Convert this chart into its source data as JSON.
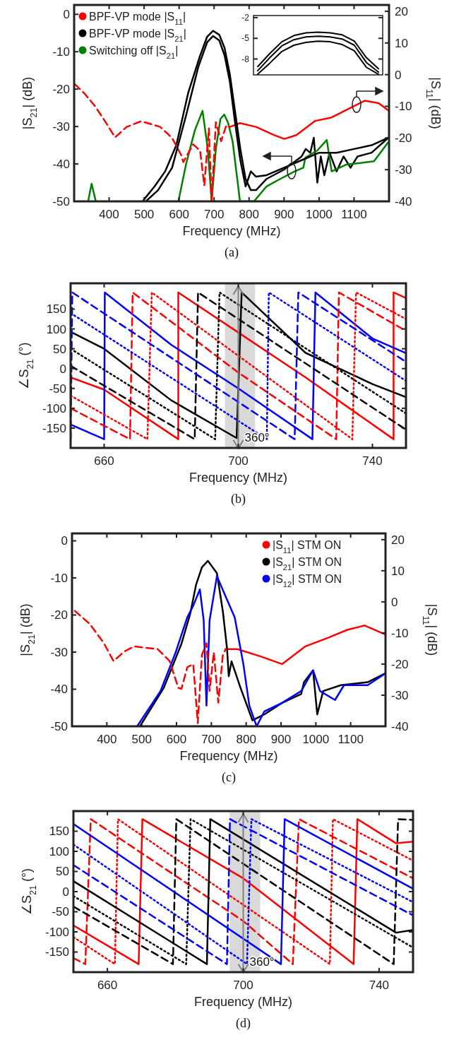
{
  "chart_data": [
    {
      "type": "line",
      "xlabel": "Frequency (MHz)",
      "ylabel": "|S$_{21}$| (dB)",
      "y2label": "|S$_{11}$| (dB)",
      "xlim": [
        300,
        1200
      ],
      "xticks": [
        400,
        500,
        600,
        700,
        800,
        900,
        1000,
        1100
      ],
      "ylim": [
        -50,
        2.5
      ],
      "yticks": [
        -50,
        -40,
        -30,
        -20,
        -10,
        0
      ],
      "y2lim": [
        -40,
        22
      ],
      "y2ticks": [
        -40,
        -30,
        -20,
        -10,
        0,
        10,
        20
      ],
      "legend": "top left",
      "annotations": [
        "(a)"
      ],
      "series": [
        {
          "name": "BPF-VP mode |S$_{11}$|",
          "color": "#ff0000",
          "axis": "y2",
          "line_style": "solid",
          "x": [
            745,
            774,
            820,
            870,
            901,
            935,
            989,
            1036,
            1090,
            1131,
            1170,
            1198
          ],
          "values": [
            -16.5,
            -15.3,
            -16.5,
            -19,
            -20.3,
            -19.1,
            -14.6,
            -13.5,
            -10.5,
            -8.2,
            -9,
            -11.3
          ]
        },
        {
          "name": "BPF-VP mode |S$_{21}$|",
          "color": "#000000",
          "line_style": "solid",
          "x": [
            498,
            530,
            560,
            592,
            626,
            659,
            680,
            697,
            715,
            730,
            745,
            760,
            775,
            790,
            805,
            820,
            850,
            900,
            950,
            962,
            975,
            985,
            995,
            1005,
            1015,
            1030,
            1050,
            1070,
            1090,
            1110,
            1150,
            1198
          ],
          "values": [
            -49.7,
            -46,
            -42,
            -35,
            -21,
            -11.3,
            -6,
            -4.4,
            -5.5,
            -9,
            -16,
            -26,
            -36,
            -44,
            -47,
            -47,
            -44,
            -41.5,
            -38,
            -36,
            -37,
            -33,
            -45,
            -38,
            -43,
            -37,
            -42,
            -38,
            -41,
            -38,
            -37,
            -33
          ]
        },
        {
          "name": "Switching off |S$_{21}$|",
          "color": "#008000",
          "line_style": "solid",
          "x": [
            340,
            350,
            362,
            480,
            598,
            620,
            645,
            667,
            682,
            693,
            705,
            718,
            729,
            740,
            753,
            774,
            814,
            850,
            889,
            930,
            955,
            961,
            995,
            1022,
            1036,
            1077,
            1157,
            1197
          ],
          "values": [
            -50,
            -45.3,
            -50,
            null,
            -50,
            -40,
            -31,
            -25.8,
            -36,
            -50,
            -36,
            -28,
            -26.8,
            -29,
            -34,
            -50,
            -50,
            -46,
            -44,
            -42,
            -41,
            -38.3,
            -36.4,
            -33.6,
            -42,
            -40.2,
            -39.3,
            -34.3
          ]
        },
        {
          "color": "#ff0000",
          "axis": "y2",
          "line_style": "dashed",
          "x": [
            302,
            330,
            360,
            390,
            417,
            450,
            492,
            546,
            580,
            606,
            612,
            640,
            660,
            672,
            685,
            693,
            705,
            720,
            735,
            745
          ],
          "values": [
            -3,
            -6,
            -10,
            -15,
            -19.8,
            -16.5,
            -14.7,
            -16.5,
            -20,
            -25.4,
            -27.6,
            -22,
            -24,
            -35,
            -17,
            -40,
            -15,
            -21,
            -16,
            -16.5
          ]
        },
        {
          "color": "#000000",
          "line_style": "solid",
          "x": [
            505,
            540,
            580,
            620,
            655,
            680,
            697,
            715,
            730,
            745,
            760,
            775,
            790,
            805,
            820,
            850,
            900,
            950,
            1000,
            1050,
            1100,
            1150,
            1198
          ],
          "values": [
            -50,
            -47,
            -41,
            -27,
            -14,
            -7.5,
            -5.8,
            -7,
            -11,
            -18,
            -29,
            -39,
            -46,
            -42,
            -43.4,
            -43,
            -41,
            -39,
            -37,
            -37,
            -36,
            -35,
            -33
          ]
        }
      ]
    },
    {
      "type": "line",
      "categories": [
        null,
        null,
        null,
        null,
        null,
        null,
        null,
        null,
        null,
        null,
        null
      ],
      "ylim": [
        -10.3,
        -1.7
      ],
      "yticks": [
        -2,
        -5,
        -8
      ],
      "tick_labels": "y",
      "series": [
        {
          "color": "#000000",
          "line_style": "solid",
          "values": [
            -9.1,
            -7.2,
            -5.5,
            -4.6,
            -4.2,
            -4.1,
            -4.2,
            -4.5,
            -5.4,
            -7.8,
            -9.4
          ]
        },
        {
          "color": "#000000",
          "line_style": "solid",
          "values": [
            -9.7,
            -7.8,
            -6.1,
            -5.2,
            -4.8,
            -4.7,
            -4.8,
            -5.1,
            -6,
            -8.5,
            -9.9
          ]
        },
        {
          "color": "#000000",
          "line_style": "solid",
          "values": [
            -10.2,
            -8.6,
            -6.9,
            -6,
            -5.6,
            -5.4,
            -5.5,
            -5.9,
            -6.8,
            -9.2,
            -10.2
          ]
        }
      ]
    },
    {
      "type": "line",
      "xlabel": "Frequency (MHz)",
      "ylabel": "∠S$_{21}$ (°)",
      "xlim": [
        650,
        750
      ],
      "xticks": [
        660,
        700,
        740
      ],
      "ylim": [
        -200,
        215
      ],
      "yticks": [
        -150,
        -100,
        -50,
        0,
        50,
        100,
        150
      ],
      "annotations": [
        "(b)",
        {
          "text": "360°",
          "x": 700,
          "y": -180
        }
      ],
      "bands": [
        {
          "axis": "x",
          "from": 696,
          "to": 705,
          "color": "#d9d9d9"
        }
      ],
      "series": [
        {
          "color": "#ff0000",
          "line_style": "solid",
          "x": [
            650,
            660,
            682.1,
            682.1,
            700,
            720,
            746.3,
            746.3,
            750
          ],
          "values": [
            -22,
            -53,
            -178,
            192,
            91,
            -22,
            -178,
            192,
            178
          ]
        },
        {
          "color": "#000000",
          "line_style": "solid",
          "x": [
            650,
            660,
            680,
            699.5,
            701,
            720,
            740,
            750
          ],
          "values": [
            93,
            50,
            -80,
            -175,
            192,
            40,
            -39,
            -72
          ]
        },
        {
          "color": "#0000ff",
          "line_style": "solid",
          "x": [
            650,
            660,
            660.2,
            680,
            700,
            722.1,
            723,
            740,
            750
          ],
          "values": [
            -141,
            -178,
            192,
            60,
            -50,
            -178,
            192,
            76,
            39
          ]
        },
        {
          "color": "#ff0000",
          "line_style": "dashed",
          "x": [
            650,
            667.7,
            668.5,
            700,
            729.2,
            730,
            750
          ],
          "values": [
            -100,
            -178,
            192,
            -10,
            -178,
            192,
            95
          ]
        },
        {
          "color": "#ff0000",
          "line_style": "dotted",
          "x": [
            650,
            672.9,
            674.2,
            734,
            735.1,
            750
          ],
          "values": [
            -68,
            -178,
            192,
            -178,
            192,
            125
          ]
        },
        {
          "color": "#000000",
          "line_style": "dashed",
          "x": [
            650,
            687,
            688,
            750
          ],
          "values": [
            7,
            -178,
            192,
            -154
          ]
        },
        {
          "color": "#000000",
          "line_style": "dotted",
          "x": [
            650,
            693.1,
            694.4,
            750
          ],
          "values": [
            50,
            -178,
            192,
            -113
          ]
        },
        {
          "color": "#0000ff",
          "line_style": "dashed",
          "x": [
            650,
            650.5,
            716.8,
            717.9,
            750
          ],
          "values": [
            -178,
            192,
            -178,
            192,
            17
          ]
        },
        {
          "color": "#0000ff",
          "line_style": "dotted",
          "x": [
            650,
            708.5,
            709.1,
            750
          ],
          "values": [
            140,
            -178,
            192,
            -31
          ]
        }
      ]
    },
    {
      "type": "line",
      "xlabel": "Frequency (MHz)",
      "ylabel": "|S$_{21}$| (dB)",
      "y2label": "|S$_{11}$| (dB)",
      "xlim": [
        300,
        1200
      ],
      "xticks": [
        400,
        500,
        600,
        700,
        800,
        900,
        1000,
        1100
      ],
      "ylim": [
        -50,
        2
      ],
      "yticks": [
        -50,
        -40,
        -30,
        -20,
        -10,
        0
      ],
      "y2lim": [
        -40,
        22
      ],
      "y2ticks": [
        -40,
        -30,
        -20,
        -10,
        0,
        10,
        20
      ],
      "legend": "top right",
      "annotations": [
        "(c)"
      ],
      "series": [
        {
          "name": "|S$_{11}$| STM ON",
          "color": "#ff0000",
          "axis": "y2",
          "line_style": "solid",
          "x": [
            741,
            775,
            840,
            903,
            970,
            1038,
            1090,
            1140,
            1200
          ],
          "values": [
            -15.2,
            -15.2,
            -17.5,
            -20,
            -14.3,
            -11.4,
            -9,
            -7.6,
            -10.5
          ]
        },
        {
          "name": "|S$_{21}$| STM ON",
          "color": "#000000",
          "line_style": "solid",
          "x": [
            495,
            563,
            614,
            639,
            656,
            673,
            690,
            716,
            733,
            745,
            750,
            758,
            784,
            818,
            852,
            903,
            958,
            966,
            992,
            1004,
            1021,
            1072,
            1149,
            1200
          ],
          "values": [
            -50,
            -39.7,
            -27.8,
            -19.8,
            -11.9,
            -7.1,
            -5.4,
            -8.7,
            -19,
            -29,
            -36.5,
            -32.5,
            -39.7,
            -48.4,
            -46.8,
            -43.7,
            -41.3,
            -38.1,
            -34.9,
            -46.8,
            -40.5,
            -38.9,
            -38.1,
            -35.7
          ]
        },
        {
          "name": "|S$_{12}$| STM ON",
          "color": "#0000ff",
          "line_style": "solid",
          "x": [
            487,
            554,
            597,
            631,
            648,
            667,
            678,
            686,
            695,
            716,
            741,
            767,
            792,
            809,
            830,
            852,
            903,
            958,
            992,
            1012,
            1055,
            1081,
            1149,
            1200
          ],
          "values": [
            -50,
            -40.5,
            -30.2,
            -20.6,
            -17.5,
            -13.1,
            -21.4,
            -44.4,
            -21.4,
            -9.5,
            -15,
            -20.6,
            -33.3,
            -44.4,
            -50,
            -46,
            -43.7,
            -40.5,
            -34.9,
            -40.5,
            -42.9,
            -38.9,
            -38.9,
            -35.7
          ]
        },
        {
          "color": "#ff0000",
          "axis": "y2",
          "line_style": "dashed",
          "x": [
            308,
            350,
            390,
            419,
            450,
            478,
            546,
            580,
            605,
            614,
            631,
            648,
            661,
            673,
            686,
            695,
            707,
            720,
            733,
            741
          ],
          "values": [
            -2.9,
            -7,
            -13,
            -19,
            -16,
            -14.3,
            -15.2,
            -19,
            -27.6,
            -28,
            -21,
            -20,
            -39,
            -17,
            -13.3,
            -28.6,
            -16.2,
            -32.4,
            -17.1,
            -15.2
          ]
        }
      ]
    },
    {
      "type": "line",
      "xlabel": "Frequency (MHz)",
      "ylabel": "∠S$_{21}$ (°)",
      "xlim": [
        650,
        750
      ],
      "xticks": [
        660,
        700,
        740
      ],
      "ylim": [
        -200,
        200
      ],
      "yticks": [
        -150,
        -100,
        -50,
        0,
        50,
        100,
        150
      ],
      "annotations": [
        "(d)",
        {
          "text": "360°",
          "x": 700,
          "y": -180
        }
      ],
      "bands": [
        {
          "axis": "x",
          "from": 696,
          "to": 705,
          "color": "#d9d9d9"
        }
      ],
      "series": [
        {
          "color": "#ff0000",
          "line_style": "solid",
          "x": [
            650,
            669.2,
            670.3,
            700,
            732.5,
            733.6,
            745,
            750
          ],
          "values": [
            -84,
            -180,
            180,
            33,
            -180,
            180,
            120,
            124
          ]
        },
        {
          "color": "#ff0000",
          "line_style": "dashed",
          "x": [
            650,
            653.5,
            655.1,
            700,
            714.6,
            716.4,
            750
          ],
          "values": [
            -165,
            -180,
            180,
            -73,
            -180,
            180,
            33
          ]
        },
        {
          "color": "#ff0000",
          "line_style": "dotted",
          "x": [
            650,
            662.2,
            663.1,
            725.5,
            726.4,
            750
          ],
          "values": [
            -113,
            -180,
            180,
            -180,
            180,
            77
          ]
        },
        {
          "color": "#000000",
          "line_style": "solid",
          "x": [
            650,
            689.3,
            690.3,
            745,
            750
          ],
          "values": [
            26,
            -180,
            180,
            -102,
            -95
          ]
        },
        {
          "color": "#000000",
          "line_style": "dashed",
          "x": [
            650,
            679.3,
            680.3,
            744.3,
            745.6,
            750
          ],
          "values": [
            -37,
            -180,
            180,
            -180,
            180,
            178
          ]
        },
        {
          "color": "#000000",
          "line_style": "dotted",
          "x": [
            650,
            683.2,
            684.5,
            750
          ],
          "values": [
            -11,
            -180,
            180,
            -139
          ]
        },
        {
          "color": "#0000ff",
          "line_style": "solid",
          "x": [
            650,
            711.1,
            712.2,
            750
          ],
          "values": [
            168,
            -180,
            180,
            7
          ]
        },
        {
          "color": "#0000ff",
          "line_style": "dashed",
          "x": [
            650,
            695.2,
            696.1,
            750
          ],
          "values": [
            66,
            -180,
            180,
            -59
          ]
        },
        {
          "color": "#0000ff",
          "line_style": "dotted",
          "x": [
            650,
            701.1,
            702.4,
            750
          ],
          "values": [
            117,
            -180,
            180,
            -26
          ]
        }
      ]
    }
  ]
}
